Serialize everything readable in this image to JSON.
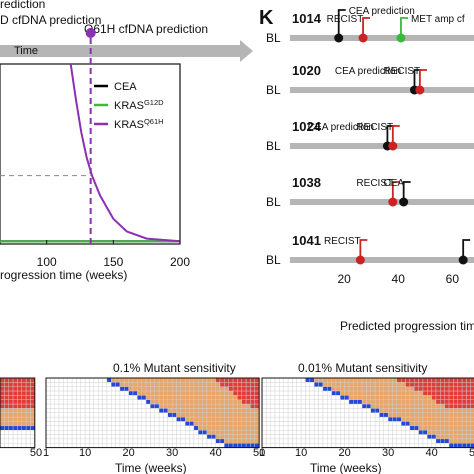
{
  "left_panel": {
    "top_label_1": "rediction",
    "top_label_2": "D cfDNA prediction",
    "arrow_label": "Time",
    "q61h_label": "Q61H cfDNA prediction",
    "xlabel": "rogression time (weeks)",
    "legend": [
      {
        "name": "CEA",
        "color": "#000000"
      },
      {
        "name": "KRAS",
        "sup": "G12D",
        "color": "#3cb93c"
      },
      {
        "name": "KRAS",
        "sup": "Q61H",
        "color": "#8b2fb3"
      }
    ]
  },
  "panel_k": {
    "letter": "K",
    "bl_label": "BL",
    "xlabel": "Predicted progression tim",
    "tick_labels": [
      "20",
      "40",
      "60"
    ],
    "patients": [
      {
        "id": "1014",
        "events": [
          {
            "label": "CEA prediction",
            "week": 18,
            "color": "#111111"
          },
          {
            "label": "RECIST",
            "week": 27,
            "color": "#cc2222"
          },
          {
            "label": "MET amp cf",
            "week": 41,
            "color": "#3cb93c"
          }
        ]
      },
      {
        "id": "1020",
        "events": [
          {
            "label": "CEA prediction",
            "week": 46,
            "color": "#111111"
          },
          {
            "label": "RECIST",
            "week": 48,
            "color": "#cc2222"
          }
        ]
      },
      {
        "id": "1024",
        "events": [
          {
            "label": "CEA prediction",
            "week": 36,
            "color": "#111111"
          },
          {
            "label": "RECIST",
            "week": 38,
            "color": "#cc2222"
          }
        ]
      },
      {
        "id": "1038",
        "events": [
          {
            "label": "RECIST",
            "week": 38,
            "color": "#cc2222"
          },
          {
            "label": "CEA",
            "week": 42,
            "color": "#111111"
          }
        ]
      },
      {
        "id": "1041",
        "events": [
          {
            "label": "RECIST",
            "week": 26,
            "color": "#cc2222"
          },
          {
            "label": "",
            "week": 64,
            "color": "#111111"
          }
        ]
      }
    ]
  },
  "bottom": {
    "titles": [
      "0.1% Mutant sensitivity",
      "0.01% Mutant sensitivity"
    ],
    "xlabel": "Time (weeks)",
    "tick_labels": [
      "1",
      "10",
      "20",
      "30",
      "40",
      "50"
    ],
    "colors": {
      "red": "#e23b3b",
      "tan": "#e8a66a",
      "blue": "#2348d8"
    }
  },
  "chart_data": [
    {
      "type": "line",
      "title": "",
      "xlabel": "rogression time (weeks)",
      "ylabel": "",
      "x_ticks": [
        100,
        150,
        200
      ],
      "xlim": [
        65,
        200
      ],
      "ylim": [
        0,
        1
      ],
      "series": [
        {
          "name": "CEA",
          "color": "#000000",
          "x": [
            65,
            200
          ],
          "y": [
            0.015,
            0.015
          ]
        },
        {
          "name": "KRAS G12D",
          "color": "#3cb93c",
          "x": [
            65,
            200
          ],
          "y": [
            0.015,
            0.015
          ]
        },
        {
          "name": "KRAS Q61H",
          "color": "#8b2fb3",
          "x": [
            118,
            122,
            126,
            130,
            134,
            140,
            150,
            160,
            175,
            200
          ],
          "y": [
            1.0,
            0.8,
            0.62,
            0.48,
            0.38,
            0.27,
            0.14,
            0.07,
            0.03,
            0.015
          ]
        }
      ],
      "annotations": [
        {
          "label": "Q61H cfDNA prediction",
          "x": 133
        },
        {
          "type": "hline",
          "y": 0.38
        }
      ]
    },
    {
      "type": "scatter",
      "title": "",
      "xlabel": "Predicted progression tim",
      "x_ticks": [
        20,
        40,
        60
      ],
      "xlim": [
        0,
        68
      ],
      "series": [
        {
          "name": "1014",
          "x": [
            18,
            27,
            41
          ]
        },
        {
          "name": "1020",
          "x": [
            46,
            48
          ]
        },
        {
          "name": "1024",
          "x": [
            36,
            38
          ]
        },
        {
          "name": "1038",
          "x": [
            38,
            42
          ]
        },
        {
          "name": "1041",
          "x": [
            26,
            64
          ]
        }
      ]
    },
    {
      "type": "heatmap",
      "title": "0.1% Mutant sensitivity",
      "xlabel": "Time (weeks)",
      "x_ticks": [
        1,
        10,
        20,
        30,
        40,
        50
      ],
      "xlim": [
        1,
        50
      ]
    },
    {
      "type": "heatmap",
      "title": "0.01% Mutant sensitivity",
      "xlabel": "Time (weeks)",
      "x_ticks": [
        1,
        10,
        20,
        30,
        40,
        50
      ],
      "xlim": [
        1,
        50
      ]
    }
  ]
}
